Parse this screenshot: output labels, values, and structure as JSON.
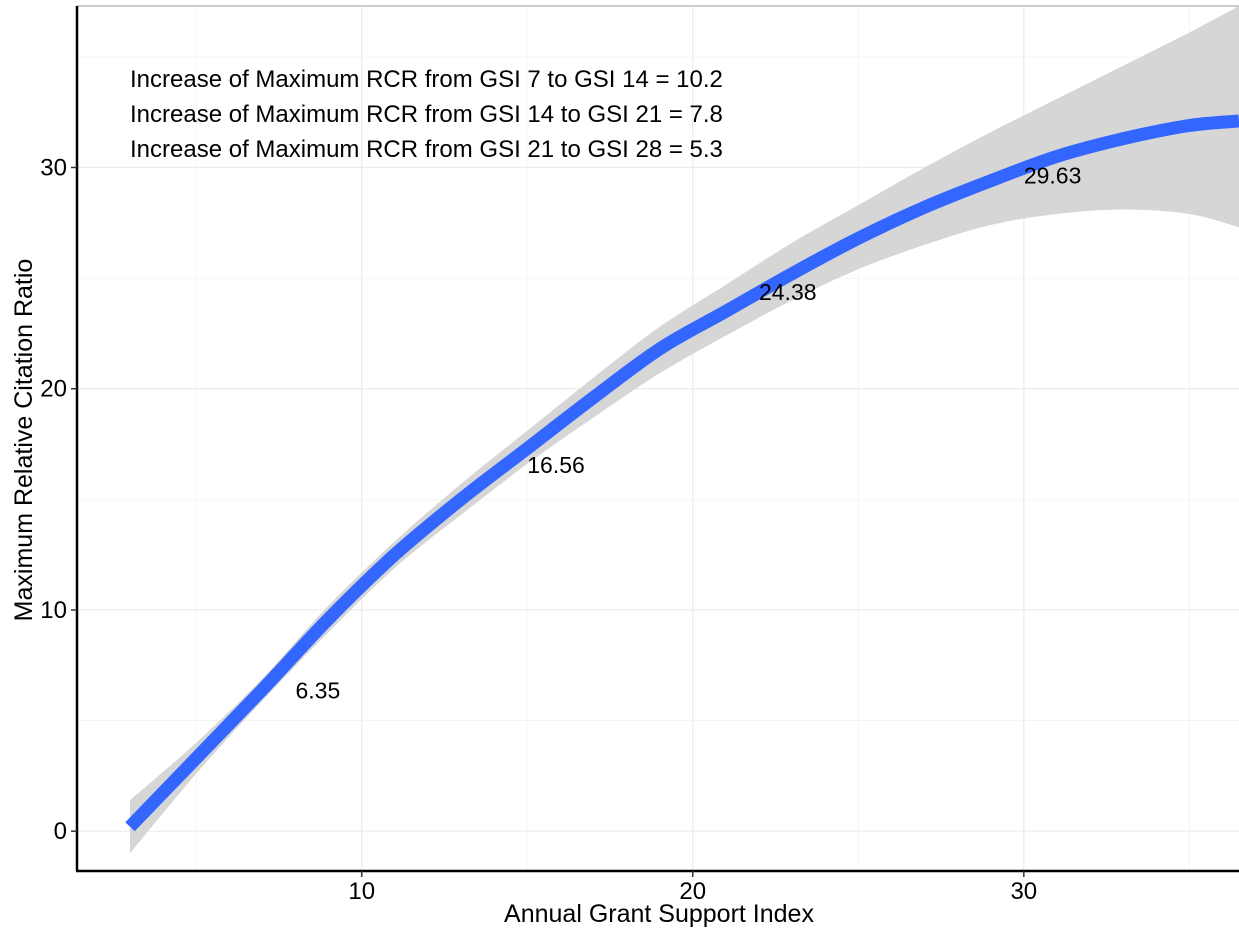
{
  "chart_data": {
    "type": "line",
    "title": "",
    "xlabel": "Annual Grant Support Index",
    "ylabel": "Maximum Relative Citation Ratio",
    "xlim": [
      1.4,
      36.5
    ],
    "ylim": [
      -1.8,
      37.3
    ],
    "x_ticks": [
      10,
      20,
      30
    ],
    "y_ticks": [
      0,
      10,
      20,
      30
    ],
    "x_tick_labels": [
      "10",
      "20",
      "30"
    ],
    "y_tick_labels": [
      "0",
      "10",
      "20",
      "30"
    ],
    "grid": true,
    "legend": "none",
    "colors": {
      "line": "#3366ff",
      "ribbon": "#d6d6d6",
      "grid": "#ebebeb",
      "axis": "#000000"
    },
    "series": [
      {
        "x": [
          3,
          5,
          7,
          9,
          11,
          13,
          15,
          17,
          19,
          21,
          23,
          25,
          27,
          29,
          31,
          33,
          35,
          36.5
        ],
        "y": [
          0.2,
          3.3,
          6.4,
          9.6,
          12.5,
          15.0,
          17.3,
          19.6,
          21.8,
          23.5,
          25.2,
          26.8,
          28.2,
          29.4,
          30.5,
          31.3,
          31.9,
          32.1
        ],
        "lower": [
          -1.0,
          2.6,
          5.9,
          9.0,
          11.9,
          14.3,
          16.6,
          18.7,
          20.7,
          22.4,
          24.0,
          25.4,
          26.5,
          27.4,
          27.9,
          28.1,
          27.9,
          27.3
        ],
        "upper": [
          1.4,
          4.0,
          6.9,
          10.2,
          13.1,
          15.7,
          18.1,
          20.5,
          22.8,
          24.7,
          26.6,
          28.3,
          30.0,
          31.6,
          33.1,
          34.6,
          36.1,
          37.3
        ]
      }
    ],
    "point_labels": [
      {
        "x": 8,
        "y": 6.35,
        "text": "6.35"
      },
      {
        "x": 15,
        "y": 16.56,
        "text": "16.56"
      },
      {
        "x": 22,
        "y": 24.38,
        "text": "24.38"
      },
      {
        "x": 30,
        "y": 29.63,
        "text": "29.63"
      }
    ],
    "annotations": [
      "Increase of Maximum RCR from GSI 7 to GSI 14 = 10.2",
      "Increase of Maximum RCR from GSI 14 to GSI 21 = 7.8",
      "Increase of Maximum RCR from GSI 21 to GSI 28 = 5.3"
    ]
  }
}
